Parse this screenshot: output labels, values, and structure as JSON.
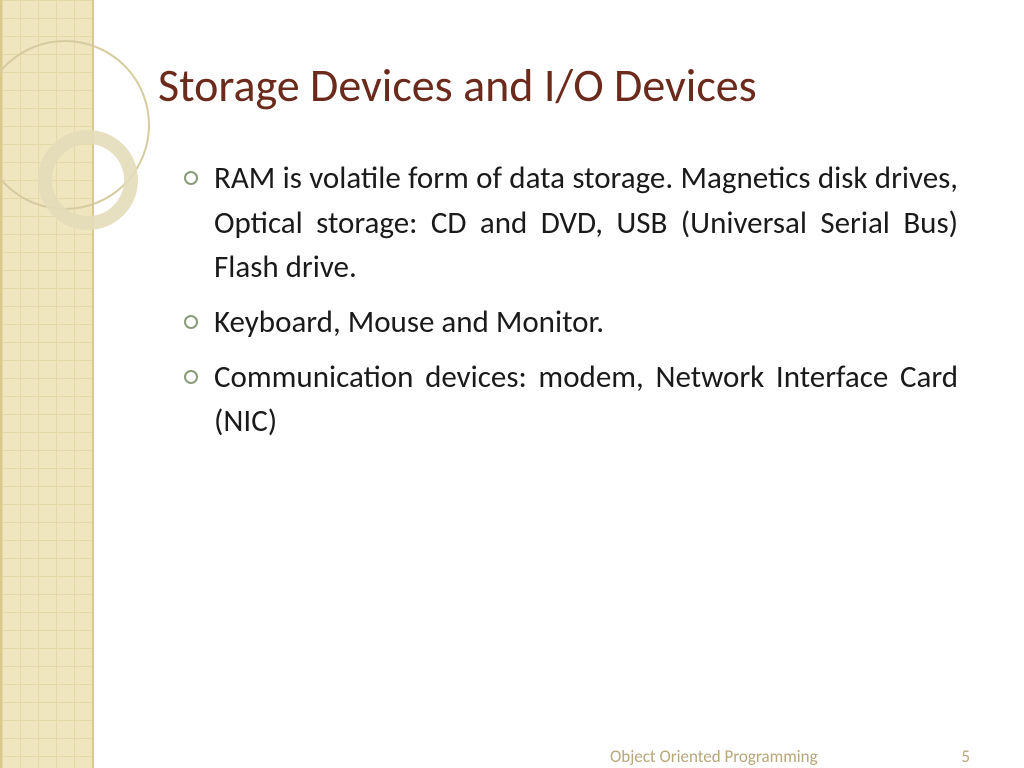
{
  "slide": {
    "title": "Storage Devices and I/O Devices",
    "bullets": [
      "RAM is volatile form of data storage. Magnetics disk drives, Optical storage: CD and DVD, USB (Universal Serial Bus) Flash drive.",
      "Keyboard, Mouse and Monitor.",
      "Communication devices: modem, Network Interface Card (NIC)"
    ],
    "footer_text": "Object Oriented Programming",
    "page_number": "5"
  },
  "style": {
    "title_color": "#6b2a1c",
    "title_fontsize": 46,
    "body_fontsize": 31,
    "body_color": "#1a1a1a",
    "bullet_ring_color": "#8a9b7a",
    "band_bg": "#efe5be",
    "band_grid": "#e6d9a9",
    "footer_color": "#b8a77a",
    "footer_fontsize": 17,
    "circle_outer_color": "#d6cba0",
    "circle_inner_color": "#e3dbb9",
    "background_color": "#ffffff"
  }
}
